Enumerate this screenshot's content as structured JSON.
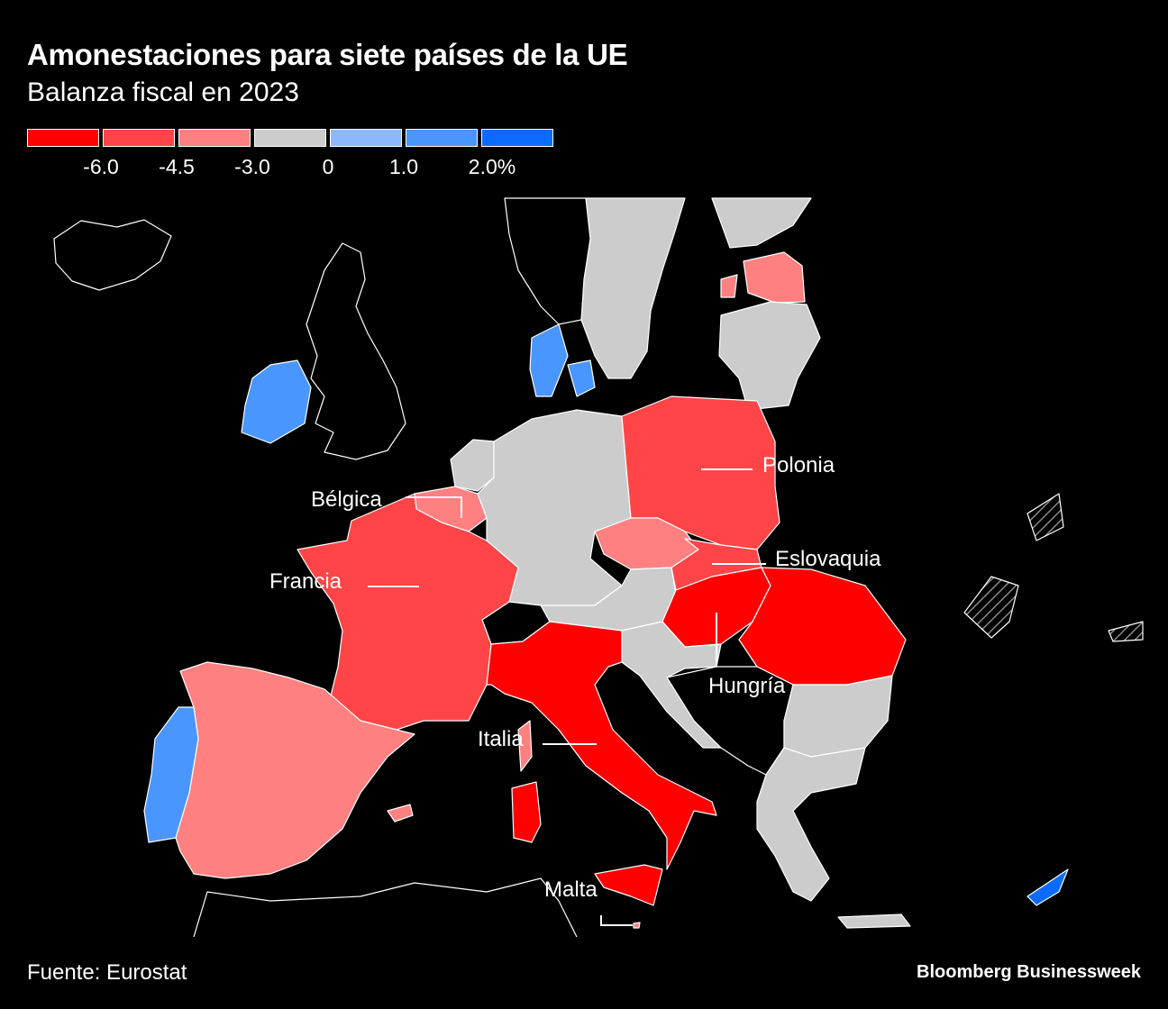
{
  "title": "Amonestaciones para siete países de la UE",
  "subtitle": "Balanza fiscal en 2023",
  "legend": {
    "colors": [
      "#ff0000",
      "#ff4548",
      "#ff8080",
      "#cccccc",
      "#8cb8ff",
      "#4a96ff",
      "#0a6cff"
    ],
    "ticks": [
      "-6.0",
      "-4.5",
      "-3.0",
      "0",
      "1.0",
      "2.0%"
    ]
  },
  "labels": {
    "polonia": "Polonia",
    "belgica": "Bélgica",
    "eslovaquia": "Eslovaquia",
    "francia": "Francia",
    "hungria": "Hungría",
    "italia": "Italia",
    "malta": "Malta"
  },
  "source": "Fuente: Eurostat",
  "brand": "Bloomberg Businessweek"
}
